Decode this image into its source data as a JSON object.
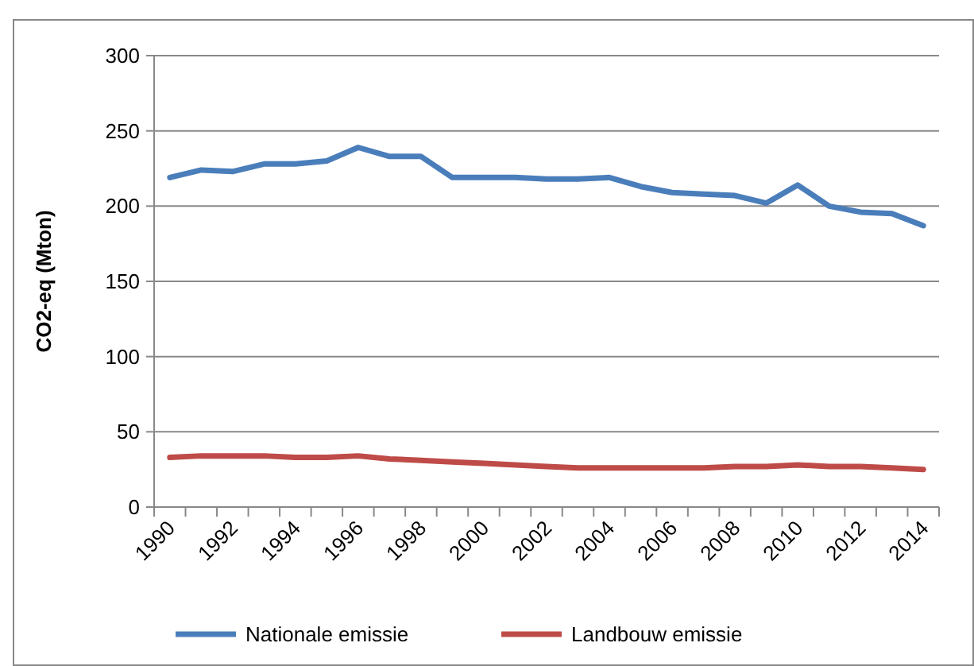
{
  "chart_data": {
    "type": "line",
    "ylabel": "CO2-eq (Mton)",
    "categories": [
      "1990",
      null,
      "1992",
      null,
      "1994",
      null,
      "1996",
      null,
      "1998",
      null,
      "2000",
      null,
      "2002",
      null,
      "2004",
      null,
      "2006",
      null,
      "2008",
      null,
      "2010",
      null,
      "2012",
      null,
      "2014"
    ],
    "series": [
      {
        "name": "Nationale emissie",
        "color": "#4a7ebb",
        "values": [
          219,
          224,
          223,
          228,
          228,
          230,
          239,
          233,
          233,
          219,
          219,
          219,
          218,
          218,
          219,
          213,
          209,
          208,
          207,
          202,
          214,
          200,
          196,
          195,
          187
        ]
      },
      {
        "name": "Landbouw emissie",
        "color": "#be4b48",
        "values": [
          33,
          34,
          34,
          34,
          33,
          33,
          34,
          32,
          31,
          30,
          29,
          28,
          27,
          26,
          26,
          26,
          26,
          26,
          27,
          27,
          28,
          27,
          27,
          26,
          25
        ]
      }
    ],
    "ylim": [
      0,
      300
    ],
    "yticks": [
      0,
      50,
      100,
      150,
      200,
      250,
      300
    ],
    "grid": "y",
    "legend": "bottom",
    "marker": "none",
    "line_style": "solid"
  }
}
